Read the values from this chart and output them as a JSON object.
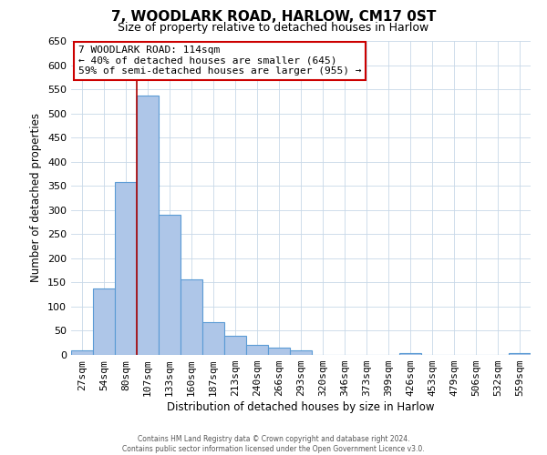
{
  "title": "7, WOODLARK ROAD, HARLOW, CM17 0ST",
  "subtitle": "Size of property relative to detached houses in Harlow",
  "xlabel": "Distribution of detached houses by size in Harlow",
  "ylabel": "Number of detached properties",
  "bar_labels": [
    "27sqm",
    "54sqm",
    "80sqm",
    "107sqm",
    "133sqm",
    "160sqm",
    "187sqm",
    "213sqm",
    "240sqm",
    "266sqm",
    "293sqm",
    "320sqm",
    "346sqm",
    "373sqm",
    "399sqm",
    "426sqm",
    "453sqm",
    "479sqm",
    "506sqm",
    "532sqm",
    "559sqm"
  ],
  "bar_values": [
    10,
    137,
    358,
    537,
    291,
    157,
    68,
    40,
    21,
    15,
    10,
    0,
    0,
    0,
    0,
    3,
    0,
    0,
    0,
    0,
    4
  ],
  "bar_color": "#aec6e8",
  "bar_edge_color": "#5b9bd5",
  "vline_index": 3,
  "vline_color": "#aa0000",
  "ylim": [
    0,
    650
  ],
  "yticks": [
    0,
    50,
    100,
    150,
    200,
    250,
    300,
    350,
    400,
    450,
    500,
    550,
    600,
    650
  ],
  "annotation_title": "7 WOODLARK ROAD: 114sqm",
  "annotation_line1": "← 40% of detached houses are smaller (645)",
  "annotation_line2": "59% of semi-detached houses are larger (955) →",
  "annotation_box_color": "#ffffff",
  "annotation_box_edge": "#cc0000",
  "footer1": "Contains HM Land Registry data © Crown copyright and database right 2024.",
  "footer2": "Contains public sector information licensed under the Open Government Licence v3.0.",
  "bg_color": "#ffffff",
  "grid_color": "#c8d8e8"
}
